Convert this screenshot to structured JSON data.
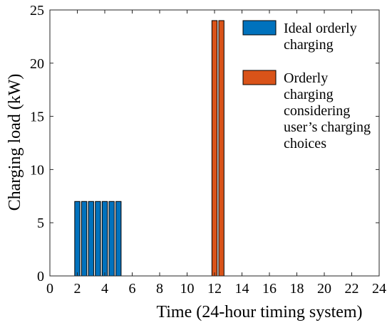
{
  "chart_data": {
    "type": "bar",
    "xlabel": "Time (24-hour timing system)",
    "ylabel": "Charging load (kW)",
    "xlim": [
      0,
      24
    ],
    "ylim": [
      0,
      25
    ],
    "xticks": [
      "0",
      "2",
      "4",
      "6",
      "8",
      "10",
      "12",
      "14",
      "16",
      "18",
      "20",
      "22",
      "24"
    ],
    "yticks": [
      "0",
      "5",
      "10",
      "15",
      "20",
      "25"
    ],
    "grid": false,
    "legend_position": "top-right",
    "series": [
      {
        "name": "Ideal orderly charging",
        "legend_lines": [
          "Ideal orderly",
          "charging"
        ],
        "color": "#0072BD",
        "x": [
          2.0,
          2.5,
          3.0,
          3.5,
          4.0,
          4.5,
          5.0
        ],
        "values": [
          7,
          7,
          7,
          7,
          7,
          7,
          7
        ]
      },
      {
        "name": "Orderly charging considering user’s charging choices",
        "legend_lines": [
          "Orderly",
          "charging",
          "considering",
          "user’s charging",
          "choices"
        ],
        "color": "#D95319",
        "x": [
          12.0,
          12.5
        ],
        "values": [
          24,
          24
        ]
      }
    ]
  }
}
